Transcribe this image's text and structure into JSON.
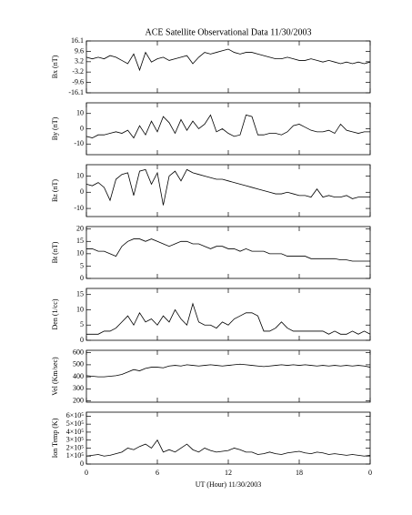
{
  "chart_data": [
    {
      "type": "line",
      "title": "ACE Satellite Observational Data  11/30/2003",
      "ylabel": "Bx (nT)",
      "x": [
        0,
        0.5,
        1,
        1.5,
        2,
        2.5,
        3,
        3.5,
        4,
        4.5,
        5,
        5.5,
        6,
        6.5,
        7,
        7.5,
        8,
        8.5,
        9,
        9.5,
        10,
        10.5,
        11,
        11.5,
        12,
        12.5,
        13,
        13.5,
        14,
        14.5,
        15,
        15.5,
        16,
        16.5,
        17,
        17.5,
        18,
        18.5,
        19,
        19.5,
        20,
        20.5,
        21,
        21.5,
        22,
        22.5,
        23,
        23.5,
        24
      ],
      "series": [
        {
          "name": "Bx",
          "color": "#000000",
          "values": [
            6,
            5,
            6,
            5,
            7,
            6,
            4,
            2,
            8,
            -2,
            9,
            3,
            5,
            6,
            4,
            5,
            6,
            7,
            2,
            6,
            9,
            8,
            9,
            10,
            11,
            9,
            8,
            9,
            9,
            8,
            7,
            6,
            5,
            5,
            6,
            5,
            4,
            4,
            5,
            4,
            3,
            4,
            3,
            2,
            3,
            2,
            3,
            2,
            3
          ]
        }
      ],
      "xlim": [
        0,
        24
      ],
      "xticks": [
        0,
        6,
        12,
        18,
        24
      ],
      "ylim": [
        -16.1,
        16.1
      ],
      "yticks": [
        16.1,
        9.6,
        3.2,
        -3.2,
        -9.6,
        -16.1
      ]
    },
    {
      "type": "line",
      "ylabel": "By (nT)",
      "x": [
        0,
        0.5,
        1,
        1.5,
        2,
        2.5,
        3,
        3.5,
        4,
        4.5,
        5,
        5.5,
        6,
        6.5,
        7,
        7.5,
        8,
        8.5,
        9,
        9.5,
        10,
        10.5,
        11,
        11.5,
        12,
        12.5,
        13,
        13.5,
        14,
        14.5,
        15,
        15.5,
        16,
        16.5,
        17,
        17.5,
        18,
        18.5,
        19,
        19.5,
        20,
        20.5,
        21,
        21.5,
        22,
        22.5,
        23,
        23.5,
        24
      ],
      "series": [
        {
          "name": "By",
          "color": "#000000",
          "values": [
            -5,
            -6,
            -4,
            -4,
            -3,
            -2,
            -3,
            -1,
            -6,
            2,
            -4,
            5,
            -2,
            8,
            4,
            -3,
            6,
            -1,
            5,
            0,
            3,
            9,
            -2,
            0,
            -3,
            -5,
            -4,
            9,
            8,
            -4,
            -4,
            -3,
            -3,
            -4,
            -2,
            2,
            3,
            1,
            -1,
            -2,
            -2,
            -1,
            -3,
            3,
            -1,
            -2,
            -3,
            -2,
            -2
          ]
        }
      ],
      "xlim": [
        0,
        24
      ],
      "xticks": [
        0,
        6,
        12,
        18,
        24
      ],
      "ylim": [
        -17,
        17
      ],
      "yticks": [
        10,
        0,
        -10
      ]
    },
    {
      "type": "line",
      "ylabel": "Bz (nT)",
      "x": [
        0,
        0.5,
        1,
        1.5,
        2,
        2.5,
        3,
        3.5,
        4,
        4.5,
        5,
        5.5,
        6,
        6.5,
        7,
        7.5,
        8,
        8.5,
        9,
        9.5,
        10,
        10.5,
        11,
        11.5,
        12,
        12.5,
        13,
        13.5,
        14,
        14.5,
        15,
        15.5,
        16,
        16.5,
        17,
        17.5,
        18,
        18.5,
        19,
        19.5,
        20,
        20.5,
        21,
        21.5,
        22,
        22.5,
        23,
        23.5,
        24
      ],
      "series": [
        {
          "name": "Bz",
          "color": "#000000",
          "values": [
            5,
            4,
            6,
            3,
            -5,
            8,
            11,
            12,
            -2,
            13,
            14,
            5,
            12,
            -8,
            10,
            13,
            7,
            14,
            12,
            11,
            10,
            9,
            8,
            8,
            7,
            6,
            5,
            4,
            3,
            2,
            1,
            0,
            -1,
            -1,
            0,
            -1,
            -2,
            -2,
            -3,
            2,
            -3,
            -2,
            -3,
            -3,
            -2,
            -4,
            -3,
            -3,
            -3
          ]
        }
      ],
      "xlim": [
        0,
        24
      ],
      "xticks": [
        0,
        6,
        12,
        18,
        24
      ],
      "ylim": [
        -15,
        17
      ],
      "yticks": [
        10,
        0,
        -10
      ]
    },
    {
      "type": "line",
      "ylabel": "Bt (nT)",
      "x": [
        0,
        0.5,
        1,
        1.5,
        2,
        2.5,
        3,
        3.5,
        4,
        4.5,
        5,
        5.5,
        6,
        6.5,
        7,
        7.5,
        8,
        8.5,
        9,
        9.5,
        10,
        10.5,
        11,
        11.5,
        12,
        12.5,
        13,
        13.5,
        14,
        14.5,
        15,
        15.5,
        16,
        16.5,
        17,
        17.5,
        18,
        18.5,
        19,
        19.5,
        20,
        20.5,
        21,
        21.5,
        22,
        22.5,
        23,
        23.5,
        24
      ],
      "series": [
        {
          "name": "Bt",
          "color": "#000000",
          "values": [
            12,
            12,
            11,
            11,
            10,
            9,
            13,
            15,
            16,
            16,
            15,
            16,
            15,
            14,
            13,
            14,
            15,
            15,
            14,
            14,
            13,
            12,
            13,
            13,
            12,
            12,
            11,
            12,
            11,
            11,
            11,
            10,
            10,
            10,
            9,
            9,
            9,
            9,
            8,
            8,
            8,
            8,
            8,
            7.5,
            7.5,
            7,
            7,
            7,
            7
          ]
        }
      ],
      "xlim": [
        0,
        24
      ],
      "xticks": [
        0,
        6,
        12,
        18,
        24
      ],
      "ylim": [
        0,
        21
      ],
      "yticks": [
        0,
        5,
        10,
        15,
        20
      ]
    },
    {
      "type": "line",
      "ylabel": "Den (1/cc)",
      "x": [
        0,
        0.5,
        1,
        1.5,
        2,
        2.5,
        3,
        3.5,
        4,
        4.5,
        5,
        5.5,
        6,
        6.5,
        7,
        7.5,
        8,
        8.5,
        9,
        9.5,
        10,
        10.5,
        11,
        11.5,
        12,
        12.5,
        13,
        13.5,
        14,
        14.5,
        15,
        15.5,
        16,
        16.5,
        17,
        17.5,
        18,
        18.5,
        19,
        19.5,
        20,
        20.5,
        21,
        21.5,
        22,
        22.5,
        23,
        23.5,
        24
      ],
      "series": [
        {
          "name": "Den",
          "color": "#000000",
          "values": [
            2,
            2,
            2,
            3,
            3,
            4,
            6,
            8,
            5,
            9,
            6,
            7,
            5,
            8,
            6,
            10,
            7,
            5,
            12,
            6,
            5,
            5,
            4,
            6,
            5,
            7,
            8,
            9,
            9,
            8,
            3,
            3,
            4,
            6,
            4,
            3,
            3,
            3,
            3,
            3,
            3,
            2,
            3,
            2,
            2,
            3,
            2,
            3,
            2
          ]
        }
      ],
      "xlim": [
        0,
        24
      ],
      "xticks": [
        0,
        6,
        12,
        18,
        24
      ],
      "ylim": [
        0,
        17
      ],
      "yticks": [
        0,
        5,
        10,
        15
      ]
    },
    {
      "type": "line",
      "ylabel": "Vel (Km/sec)",
      "x": [
        0,
        0.5,
        1,
        1.5,
        2,
        2.5,
        3,
        3.5,
        4,
        4.5,
        5,
        5.5,
        6,
        6.5,
        7,
        7.5,
        8,
        8.5,
        9,
        9.5,
        10,
        10.5,
        11,
        11.5,
        12,
        12.5,
        13,
        13.5,
        14,
        14.5,
        15,
        15.5,
        16,
        16.5,
        17,
        17.5,
        18,
        18.5,
        19,
        19.5,
        20,
        20.5,
        21,
        21.5,
        22,
        22.5,
        23,
        23.5,
        24
      ],
      "series": [
        {
          "name": "Vel",
          "color": "#000000",
          "values": [
            410,
            405,
            400,
            400,
            405,
            410,
            420,
            440,
            460,
            450,
            470,
            480,
            480,
            475,
            490,
            495,
            490,
            500,
            495,
            490,
            495,
            500,
            495,
            490,
            495,
            500,
            505,
            500,
            495,
            490,
            485,
            490,
            495,
            500,
            495,
            500,
            495,
            500,
            495,
            490,
            495,
            490,
            495,
            490,
            495,
            490,
            495,
            490,
            480
          ]
        }
      ],
      "xlim": [
        0,
        24
      ],
      "xticks": [
        0,
        6,
        12,
        18,
        24
      ],
      "ylim": [
        190,
        620
      ],
      "yticks": [
        200,
        300,
        400,
        500,
        600
      ]
    },
    {
      "type": "line",
      "ylabel": "Ion Temp (K)",
      "xlabel": "UT (Hour)  11/30/2003",
      "x": [
        0,
        0.5,
        1,
        1.5,
        2,
        2.5,
        3,
        3.5,
        4,
        4.5,
        5,
        5.5,
        6,
        6.5,
        7,
        7.5,
        8,
        8.5,
        9,
        9.5,
        10,
        10.5,
        11,
        11.5,
        12,
        12.5,
        13,
        13.5,
        14,
        14.5,
        15,
        15.5,
        16,
        16.5,
        17,
        17.5,
        18,
        18.5,
        19,
        19.5,
        20,
        20.5,
        21,
        21.5,
        22,
        22.5,
        23,
        23.5,
        24
      ],
      "series": [
        {
          "name": "Ion Temp",
          "color": "#000000",
          "values": [
            100000,
            110000,
            120000,
            100000,
            110000,
            130000,
            150000,
            200000,
            180000,
            220000,
            250000,
            200000,
            300000,
            150000,
            180000,
            150000,
            200000,
            250000,
            180000,
            150000,
            200000,
            170000,
            150000,
            160000,
            170000,
            200000,
            180000,
            150000,
            150000,
            120000,
            130000,
            150000,
            130000,
            120000,
            140000,
            150000,
            160000,
            140000,
            130000,
            150000,
            140000,
            120000,
            130000,
            120000,
            110000,
            120000,
            110000,
            100000,
            110000
          ]
        }
      ],
      "xlim": [
        0,
        24
      ],
      "xticks": [
        0,
        6,
        12,
        18,
        {
          "value": 24,
          "label": "0"
        }
      ],
      "ylim": [
        0,
        650000
      ],
      "yticks": [
        0,
        {
          "value": 100000,
          "label": "1×10⁵"
        },
        {
          "value": 200000,
          "label": "2×10⁵"
        },
        {
          "value": 300000,
          "label": "3×10⁵"
        },
        {
          "value": 400000,
          "label": "4×10⁵"
        },
        {
          "value": 500000,
          "label": "5×10⁵"
        },
        {
          "value": 600000,
          "label": "6×10⁵"
        }
      ]
    }
  ]
}
